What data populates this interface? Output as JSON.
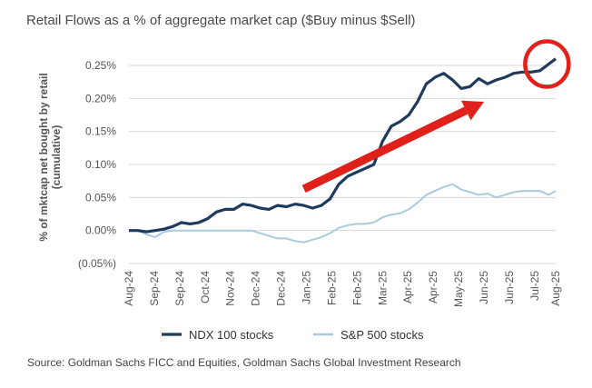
{
  "title": "Retail Flows as a % of aggregate market cap ($Buy minus $Sell)",
  "source": "Source: Goldman Sachs FICC and Equities, Goldman Sachs Global Investment Research",
  "colors": {
    "ndx": "#1f3a5c",
    "spx": "#a9cbdc",
    "arrow": "#e0201b",
    "circle": "#e0201b"
  },
  "chart_data": {
    "type": "line",
    "ylabel": "% of mktcap net bought by retail (cumulative)",
    "ylabel_lines": [
      "% of mktcap net bought by retail",
      "(cumulative)"
    ],
    "ylim": [
      -0.05,
      0.25
    ],
    "yticks": [
      -0.05,
      0.0,
      0.05,
      0.1,
      0.15,
      0.2,
      0.25
    ],
    "ytick_labels": [
      "(0.05%)",
      "0.00%",
      "0.05%",
      "0.10%",
      "0.15%",
      "0.20%",
      "0.25%"
    ],
    "xlim": [
      0,
      24
    ],
    "xticks": [
      0,
      2,
      4,
      6,
      8,
      10,
      12,
      14,
      16,
      18,
      20,
      22,
      24
    ],
    "xtick_labels": [
      "Aug-24",
      "Sep-24",
      "Sep-24",
      "Oct-24",
      "Nov-24",
      "Dec-24",
      "Dec-24",
      "Jan-25",
      "Feb-25",
      "Feb-25",
      "Mar-25",
      "Apr-25",
      "Apr-25",
      "May-25",
      "Jun-25",
      "Jun-25",
      "Jul-25",
      "Aug-25"
    ],
    "xtick_values": [
      0,
      1.45,
      2.9,
      4.35,
      5.8,
      7.25,
      8.7,
      10.15,
      11.6,
      13.05,
      14.5,
      15.95,
      17.4,
      18.85,
      20.3,
      21.75,
      23.2,
      24.4
    ],
    "grid": "horizontal",
    "legend_position": "bottom",
    "series": [
      {
        "name": "NDX 100 stocks",
        "x": [
          0,
          0.5,
          1,
          1.5,
          2,
          2.5,
          3,
          3.5,
          4,
          4.5,
          5,
          5.5,
          6,
          6.5,
          7,
          7.5,
          8,
          8.5,
          9,
          9.5,
          10,
          10.5,
          11,
          11.5,
          12,
          12.5,
          13,
          13.5,
          14,
          14.5,
          15,
          15.5,
          16,
          16.5,
          17,
          17.5,
          18,
          18.5,
          19,
          19.5,
          20,
          20.5,
          21,
          21.5,
          22,
          22.5,
          23,
          23.5,
          24,
          24.4
        ],
        "values": [
          0.0,
          0.0,
          -0.002,
          0.0,
          0.002,
          0.006,
          0.012,
          0.01,
          0.012,
          0.018,
          0.028,
          0.032,
          0.032,
          0.04,
          0.038,
          0.034,
          0.032,
          0.038,
          0.036,
          0.04,
          0.038,
          0.034,
          0.038,
          0.048,
          0.07,
          0.082,
          0.088,
          0.094,
          0.1,
          0.135,
          0.158,
          0.165,
          0.175,
          0.195,
          0.222,
          0.232,
          0.238,
          0.228,
          0.215,
          0.218,
          0.23,
          0.222,
          0.228,
          0.232,
          0.238,
          0.24,
          0.24,
          0.242,
          0.252,
          0.26
        ]
      },
      {
        "name": "S&P 500 stocks",
        "x": [
          0,
          0.5,
          1,
          1.5,
          2,
          2.5,
          3,
          3.5,
          4,
          4.5,
          5,
          5.5,
          6,
          6.5,
          7,
          7.5,
          8,
          8.5,
          9,
          9.5,
          10,
          10.5,
          11,
          11.5,
          12,
          12.5,
          13,
          13.5,
          14,
          14.5,
          15,
          15.5,
          16,
          16.5,
          17,
          17.5,
          18,
          18.5,
          19,
          19.5,
          20,
          20.5,
          21,
          21.5,
          22,
          22.5,
          23,
          23.5,
          24,
          24.4
        ],
        "values": [
          0.0,
          0.0,
          -0.006,
          -0.01,
          -0.002,
          0.0,
          0.0,
          0.0,
          0.0,
          0.0,
          0.0,
          0.0,
          0.0,
          0.0,
          0.0,
          -0.004,
          -0.008,
          -0.012,
          -0.012,
          -0.016,
          -0.018,
          -0.014,
          -0.01,
          -0.004,
          0.004,
          0.008,
          0.01,
          0.01,
          0.012,
          0.02,
          0.024,
          0.026,
          0.032,
          0.042,
          0.054,
          0.06,
          0.066,
          0.07,
          0.062,
          0.058,
          0.054,
          0.056,
          0.05,
          0.054,
          0.058,
          0.06,
          0.06,
          0.06,
          0.054,
          0.06
        ]
      }
    ],
    "annotations": [
      {
        "type": "arrow",
        "from": [
          10.0,
          0.063
        ],
        "to": [
          20.3,
          0.195
        ]
      },
      {
        "type": "circle",
        "center": [
          23.9,
          0.252
        ]
      }
    ]
  }
}
